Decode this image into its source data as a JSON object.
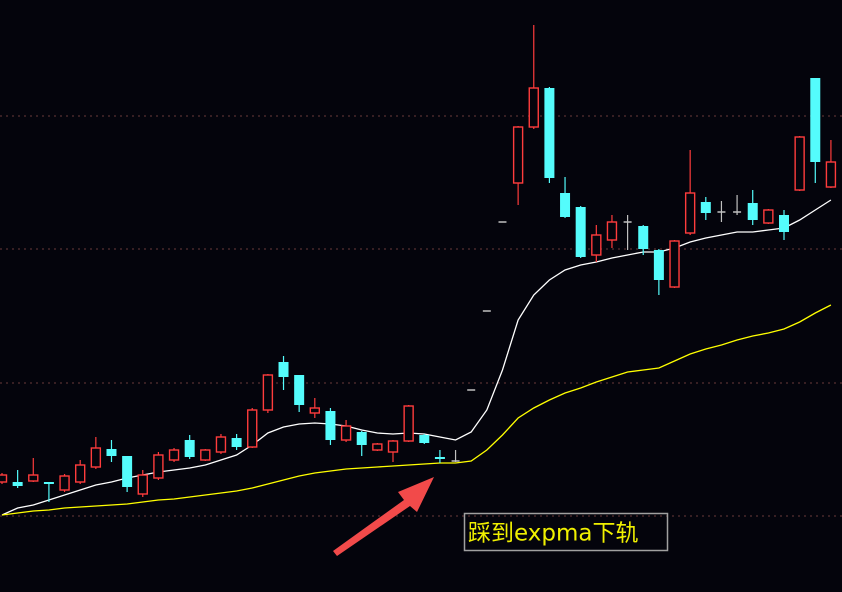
{
  "chart_data": {
    "type": "candlestick",
    "up_color": "#ff3c3c",
    "down_color": "#54fcfc",
    "flat_color": "#c0c0c0",
    "ylim": [
      0,
      592
    ],
    "open": [
      110,
      110,
      111,
      110,
      102,
      110,
      125,
      143,
      136,
      98,
      114,
      132,
      152,
      132,
      140,
      154,
      145,
      182,
      230,
      217,
      179,
      181,
      152,
      160,
      142,
      140,
      151,
      157,
      135,
      131,
      202,
      281,
      370,
      409,
      465,
      504,
      399,
      385,
      337,
      352,
      370,
      366,
      342,
      305,
      359,
      390,
      380,
      380,
      389,
      369,
      377,
      402,
      514,
      405
    ],
    "high": [
      119,
      122,
      134,
      110,
      118,
      132,
      155,
      152,
      136,
      122,
      140,
      144,
      157,
      143,
      158,
      158,
      184,
      218,
      236,
      217,
      194,
      184,
      172,
      161,
      149,
      152,
      187,
      158,
      142,
      142,
      202,
      281,
      370,
      466,
      567,
      505,
      415,
      386,
      367,
      377,
      377,
      367,
      343,
      352,
      442,
      395,
      391,
      397,
      402,
      383,
      382,
      456,
      514,
      452
    ],
    "low": [
      108,
      104,
      110,
      90,
      100,
      108,
      123,
      130,
      100,
      95,
      112,
      130,
      133,
      131,
      138,
      142,
      144,
      179,
      202,
      180,
      174,
      147,
      150,
      136,
      141,
      130,
      150,
      148,
      129,
      130,
      202,
      281,
      370,
      387,
      463,
      409,
      374,
      334,
      330,
      344,
      342,
      337,
      297,
      304,
      357,
      372,
      370,
      377,
      367,
      368,
      352,
      401,
      409,
      404
    ],
    "close": [
      117,
      106,
      117,
      108,
      116,
      127,
      144,
      136,
      105,
      117,
      137,
      142,
      135,
      142,
      155,
      145,
      182,
      217,
      215,
      187,
      184,
      152,
      166,
      147,
      148,
      151,
      186,
      149,
      133,
      131,
      202,
      281,
      370,
      465,
      504,
      414,
      375,
      335,
      357,
      370,
      370,
      343,
      312,
      351,
      399,
      379,
      380,
      380,
      372,
      382,
      360,
      455,
      430,
      430
    ],
    "lines": [
      {
        "color": "#ffffff",
        "values": [
          77,
          84,
          87,
          92,
          97,
          102,
          107,
          110,
          114,
          117,
          120,
          122,
          124,
          127,
          132,
          137,
          147,
          159,
          165,
          168,
          169,
          168,
          166,
          162,
          159,
          158,
          159,
          158,
          155,
          152,
          160,
          182,
          222,
          272,
          297,
          312,
          322,
          327,
          330,
          334,
          337,
          340,
          340,
          344,
          350,
          354,
          357,
          360,
          360,
          362,
          364,
          372,
          382,
          392
        ]
      },
      {
        "color": "#ffff00",
        "values": [
          77,
          79,
          81,
          82,
          84,
          85,
          86,
          87,
          88,
          90,
          92,
          93,
          95,
          97,
          99,
          101,
          104,
          108,
          112,
          116,
          119,
          121,
          123,
          124,
          125,
          126,
          127,
          128,
          129,
          129,
          131,
          142,
          157,
          174,
          184,
          192,
          199,
          204,
          210,
          215,
          220,
          222,
          224,
          231,
          238,
          243,
          247,
          252,
          256,
          259,
          263,
          270,
          279,
          287
        ]
      }
    ],
    "annotation": "踩到expma下轨"
  }
}
